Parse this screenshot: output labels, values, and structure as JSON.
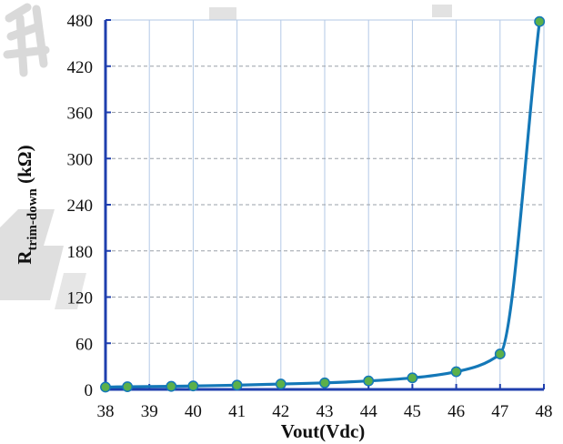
{
  "chart_data": {
    "type": "line",
    "title": "",
    "xlabel": "Vout(Vdc)",
    "ylabel_main": "R",
    "ylabel_sub": "trim-down",
    "ylabel_unit": " (kΩ)",
    "xlim": [
      38,
      48
    ],
    "ylim": [
      0,
      480
    ],
    "x_ticks": [
      "38",
      "39",
      "40",
      "41",
      "42",
      "43",
      "44",
      "45",
      "46",
      "47",
      "48"
    ],
    "y_ticks": [
      "0",
      "60",
      "120",
      "180",
      "240",
      "300",
      "360",
      "420",
      "480"
    ],
    "grid": true,
    "series": [
      {
        "x": [
          38,
          38.5,
          39.5,
          40,
          41,
          42,
          43,
          44,
          45,
          46,
          47,
          47.9
        ],
        "y": [
          3,
          3.5,
          4,
          4.5,
          5.5,
          7,
          8.5,
          11,
          15,
          23,
          46,
          478
        ]
      }
    ],
    "colors": {
      "line": "#1478b8",
      "marker_fill": "#5bb04a",
      "marker_edge": "#1478b8",
      "axis": "#1f3fae",
      "grid_v": "#b3c9e6",
      "grid_h": "#9aa0a8"
    }
  }
}
